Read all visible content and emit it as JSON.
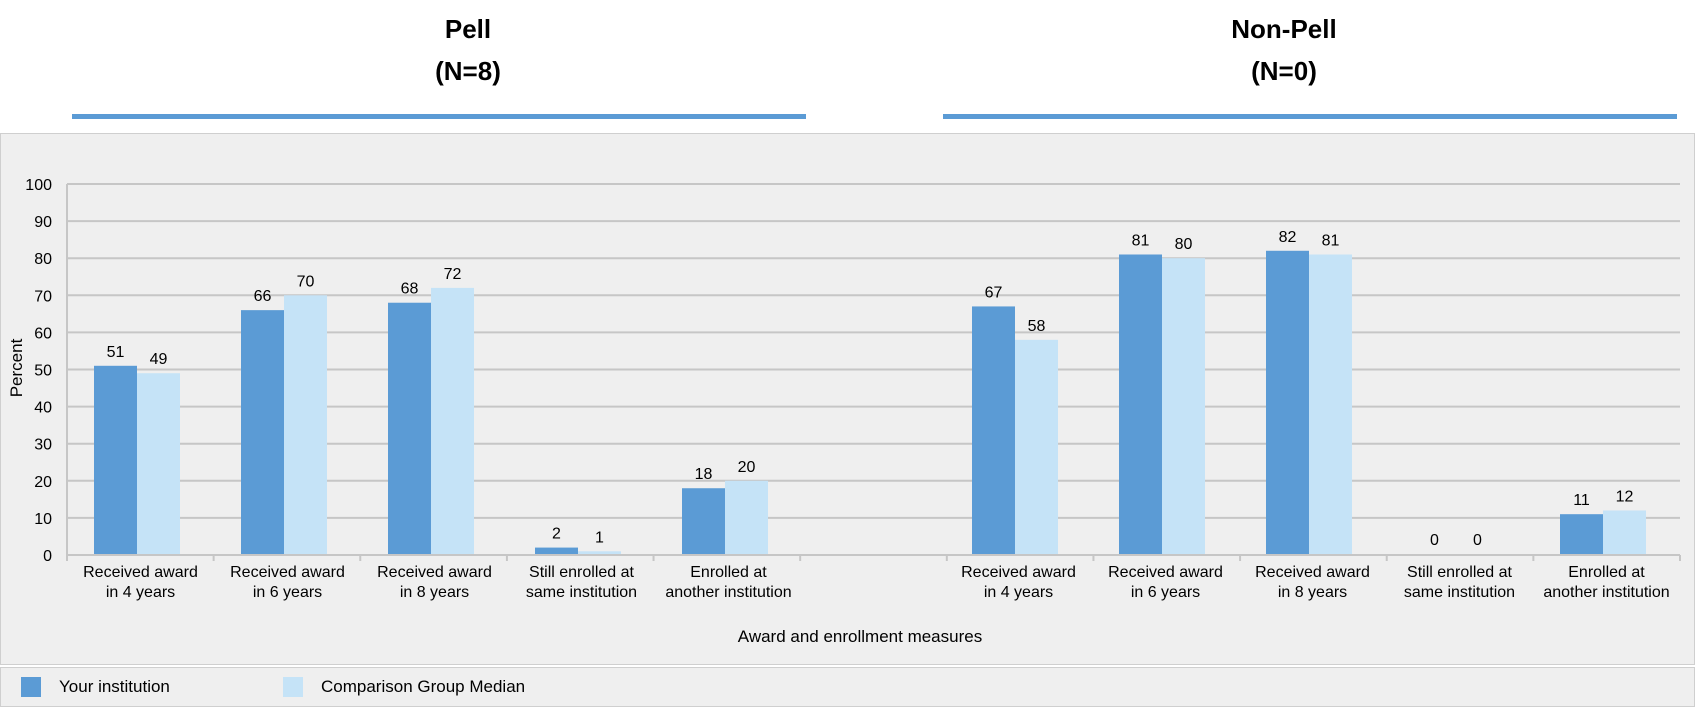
{
  "panels": [
    {
      "title": "Pell",
      "subtitle": "(N=8)"
    },
    {
      "title": "Non-Pell",
      "subtitle": "(N=0)"
    }
  ],
  "legend": [
    {
      "label": "Your institution",
      "color": "#5b9bd5"
    },
    {
      "label": "Comparison Group Median",
      "color": "#c5e3f7"
    }
  ],
  "chart_data": {
    "type": "bar",
    "ylabel": "Percent",
    "xlabel": "Award and enrollment measures",
    "ylim": [
      0,
      100
    ],
    "yticks": [
      0,
      10,
      20,
      30,
      40,
      50,
      60,
      70,
      80,
      90,
      100
    ],
    "grid": true,
    "legend_position": "bottom",
    "categories": [
      [
        "Received award",
        "in 4 years"
      ],
      [
        "Received award",
        "in 6 years"
      ],
      [
        "Received award",
        "in 8 years"
      ],
      [
        "Still enrolled at",
        "same institution"
      ],
      [
        "Enrolled at",
        "another institution"
      ]
    ],
    "groups": [
      {
        "panel": "Pell",
        "series": [
          {
            "name": "Your institution",
            "values": [
              51,
              66,
              68,
              2,
              18
            ]
          },
          {
            "name": "Comparison Group Median",
            "values": [
              49,
              70,
              72,
              1,
              20
            ]
          }
        ]
      },
      {
        "panel": "Non-Pell",
        "series": [
          {
            "name": "Your institution",
            "values": [
              67,
              81,
              82,
              0,
              11
            ]
          },
          {
            "name": "Comparison Group Median",
            "values": [
              58,
              80,
              81,
              0,
              12
            ]
          }
        ]
      }
    ]
  }
}
